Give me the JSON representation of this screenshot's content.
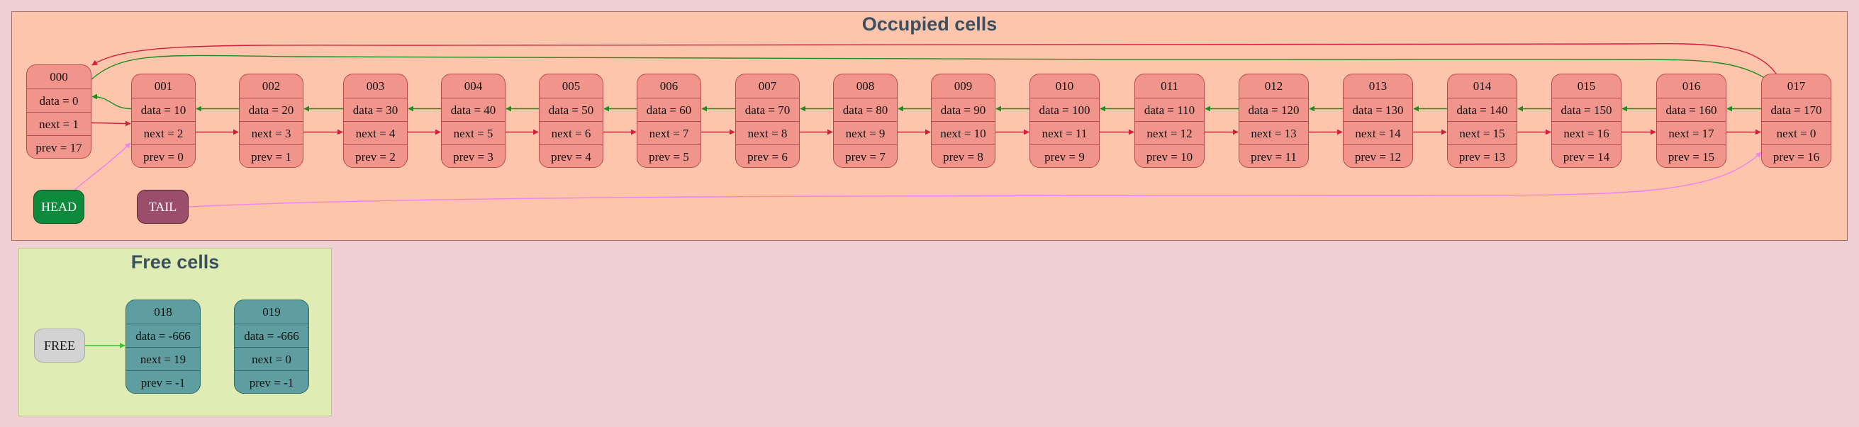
{
  "clusters": {
    "occupied_title": "Occupied cells",
    "free_title": "Free cells"
  },
  "pointers": {
    "head": "HEAD",
    "tail": "TAIL",
    "free": "FREE"
  },
  "occupied": [
    {
      "id": "000",
      "data": "data = 0",
      "next": "next = 1",
      "prev": "prev = 17"
    },
    {
      "id": "001",
      "data": "data = 10",
      "next": "next = 2",
      "prev": "prev = 0"
    },
    {
      "id": "002",
      "data": "data = 20",
      "next": "next = 3",
      "prev": "prev = 1"
    },
    {
      "id": "003",
      "data": "data = 30",
      "next": "next = 4",
      "prev": "prev = 2"
    },
    {
      "id": "004",
      "data": "data = 40",
      "next": "next = 5",
      "prev": "prev = 3"
    },
    {
      "id": "005",
      "data": "data = 50",
      "next": "next = 6",
      "prev": "prev = 4"
    },
    {
      "id": "006",
      "data": "data = 60",
      "next": "next = 7",
      "prev": "prev = 5"
    },
    {
      "id": "007",
      "data": "data = 70",
      "next": "next = 8",
      "prev": "prev = 6"
    },
    {
      "id": "008",
      "data": "data = 80",
      "next": "next = 9",
      "prev": "prev = 7"
    },
    {
      "id": "009",
      "data": "data = 90",
      "next": "next = 10",
      "prev": "prev = 8"
    },
    {
      "id": "010",
      "data": "data = 100",
      "next": "next = 11",
      "prev": "prev = 9"
    },
    {
      "id": "011",
      "data": "data = 110",
      "next": "next = 12",
      "prev": "prev = 10"
    },
    {
      "id": "012",
      "data": "data = 120",
      "next": "next = 13",
      "prev": "prev = 11"
    },
    {
      "id": "013",
      "data": "data = 130",
      "next": "next = 14",
      "prev": "prev = 12"
    },
    {
      "id": "014",
      "data": "data = 140",
      "next": "next = 15",
      "prev": "prev = 13"
    },
    {
      "id": "015",
      "data": "data = 150",
      "next": "next = 16",
      "prev": "prev = 14"
    },
    {
      "id": "016",
      "data": "data = 160",
      "next": "next = 17",
      "prev": "prev = 15"
    },
    {
      "id": "017",
      "data": "data = 170",
      "next": "next = 0",
      "prev": "prev = 16"
    }
  ],
  "free": [
    {
      "id": "018",
      "data": "data = -666",
      "next": "next = 19",
      "prev": "prev = -1"
    },
    {
      "id": "019",
      "data": "data = -666",
      "next": "next = 0",
      "prev": "prev = -1"
    }
  ],
  "colors": {
    "next_edge": "#d21f3c",
    "prev_edge": "#228b22",
    "head_tail_edge": "#ee82ee",
    "free_edge": "#32cd32",
    "occupied_cell": "#f1958c",
    "free_cell": "#5f9ea0",
    "head": "#0d8a3c",
    "tail": "#9a4e6c",
    "free_pointer": "#d3d3d3"
  }
}
